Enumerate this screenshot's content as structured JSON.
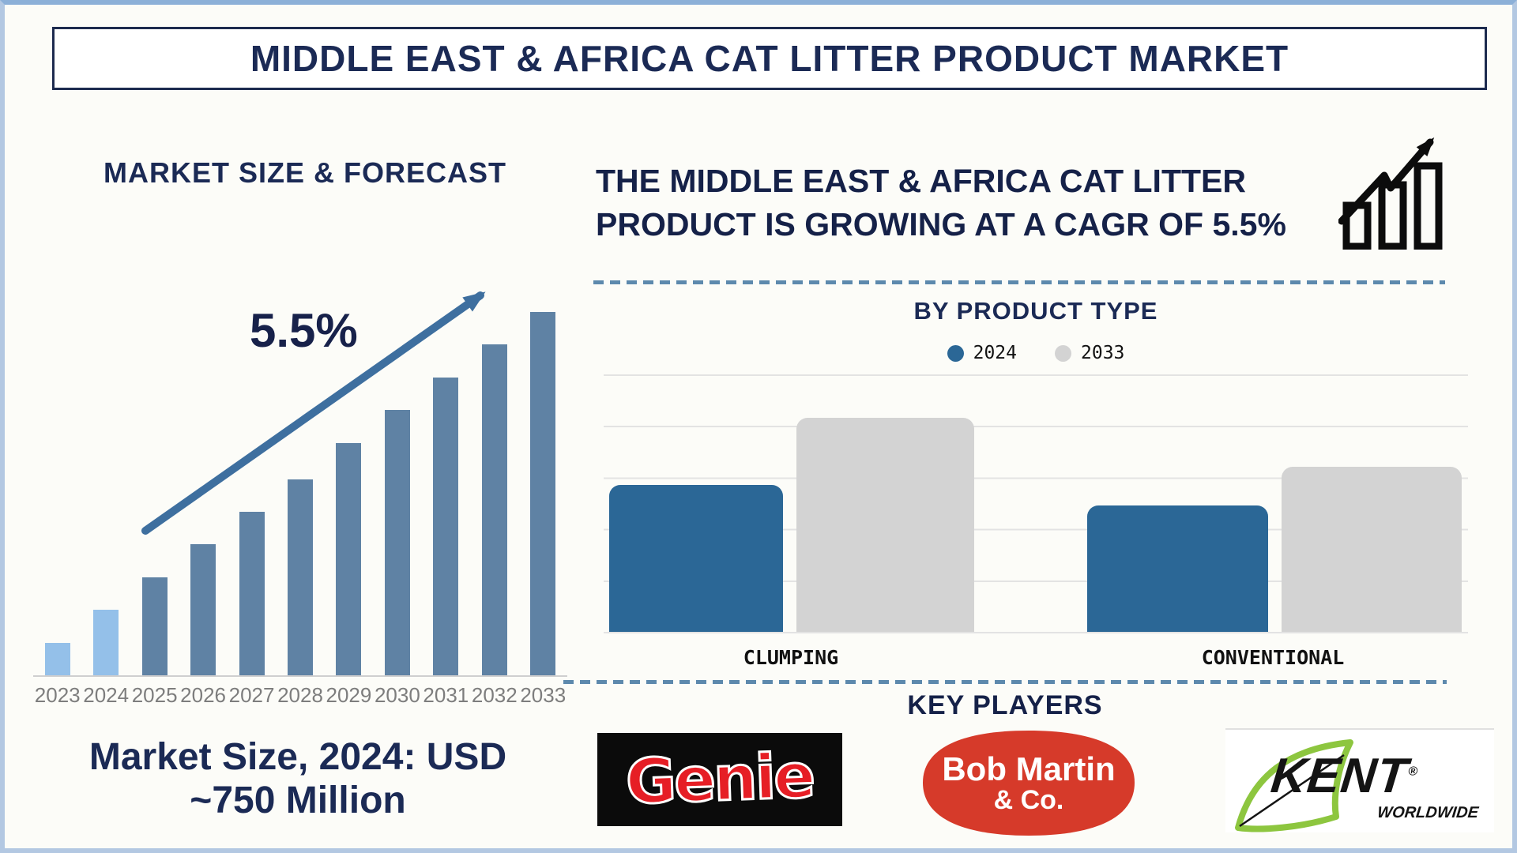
{
  "header": {
    "title": "MIDDLE EAST & AFRICA CAT LITTER PRODUCT MARKET"
  },
  "left_panel": {
    "section_title": "MARKET SIZE & FORECAST",
    "growth_label": "5.5%",
    "caption_line1": "Market Size, 2024: USD",
    "caption_line2": "~750 Million"
  },
  "right_panel": {
    "cagr_statement": "THE MIDDLE EAST & AFRICA CAT LITTER PRODUCT IS GROWING AT A CAGR OF 5.5%",
    "product_chart_title": "BY PRODUCT TYPE",
    "key_players_heading": "KEY PLAYERS",
    "key_players": [
      {
        "name": "Genie",
        "style": "red bubble letters on black box"
      },
      {
        "name": "Bob Martin & Co.",
        "line1": "Bob Martin",
        "line2": "& Co.",
        "style": "white text on red badge"
      },
      {
        "name": "KENT Worldwide",
        "line1": "KENT",
        "reg": "®",
        "line2": "WORLDWIDE",
        "style": "black italic text with green leaf swoosh"
      }
    ]
  },
  "colors": {
    "navy_text": "#1b2a55",
    "frame_border": "#b3c8e2",
    "frame_top_line": "#8cb0d8",
    "dashed_divider": "#5d89ad",
    "left_bar_historical": "#94c0e9",
    "left_bar_forecast": "#5f82a4",
    "left_arrow": "#3e6f9f",
    "right_bar_2024": "#2b6796",
    "right_bar_2033": "#d3d3d3",
    "gridline": "#e3e3e3",
    "year_label": "#7d7d7d",
    "genie_red": "#e61e25",
    "bobmartin_red": "#d63a2a",
    "kent_green": "#8dc63f"
  },
  "chart_data": [
    {
      "type": "bar",
      "title": "MARKET SIZE & FORECAST",
      "categories": [
        "2023",
        "2024",
        "2025",
        "2026",
        "2027",
        "2028",
        "2029",
        "2030",
        "2031",
        "2032",
        "2033"
      ],
      "values": [
        9,
        18,
        27,
        36,
        45,
        54,
        64,
        73,
        82,
        91,
        100
      ],
      "unit": "relative index (y-axis unlabeled)",
      "ylim": [
        0,
        100
      ],
      "grid": false,
      "annotation": "5.5% CAGR arrow rising over bars",
      "light_bar_years": [
        "2023",
        "2024"
      ],
      "caption": "Market Size, 2024: USD ~750 Million"
    },
    {
      "type": "bar",
      "title": "BY PRODUCT TYPE",
      "categories": [
        "CLUMPING",
        "CONVENTIONAL"
      ],
      "series": [
        {
          "name": "2024",
          "color": "#2b6796",
          "values": [
            57,
            49
          ]
        },
        {
          "name": "2033",
          "color": "#d3d3d3",
          "values": [
            83,
            64
          ]
        }
      ],
      "unit": "relative index (y-axis unlabeled)",
      "ylim": [
        0,
        100
      ],
      "grid": true,
      "legend_position": "top"
    }
  ]
}
